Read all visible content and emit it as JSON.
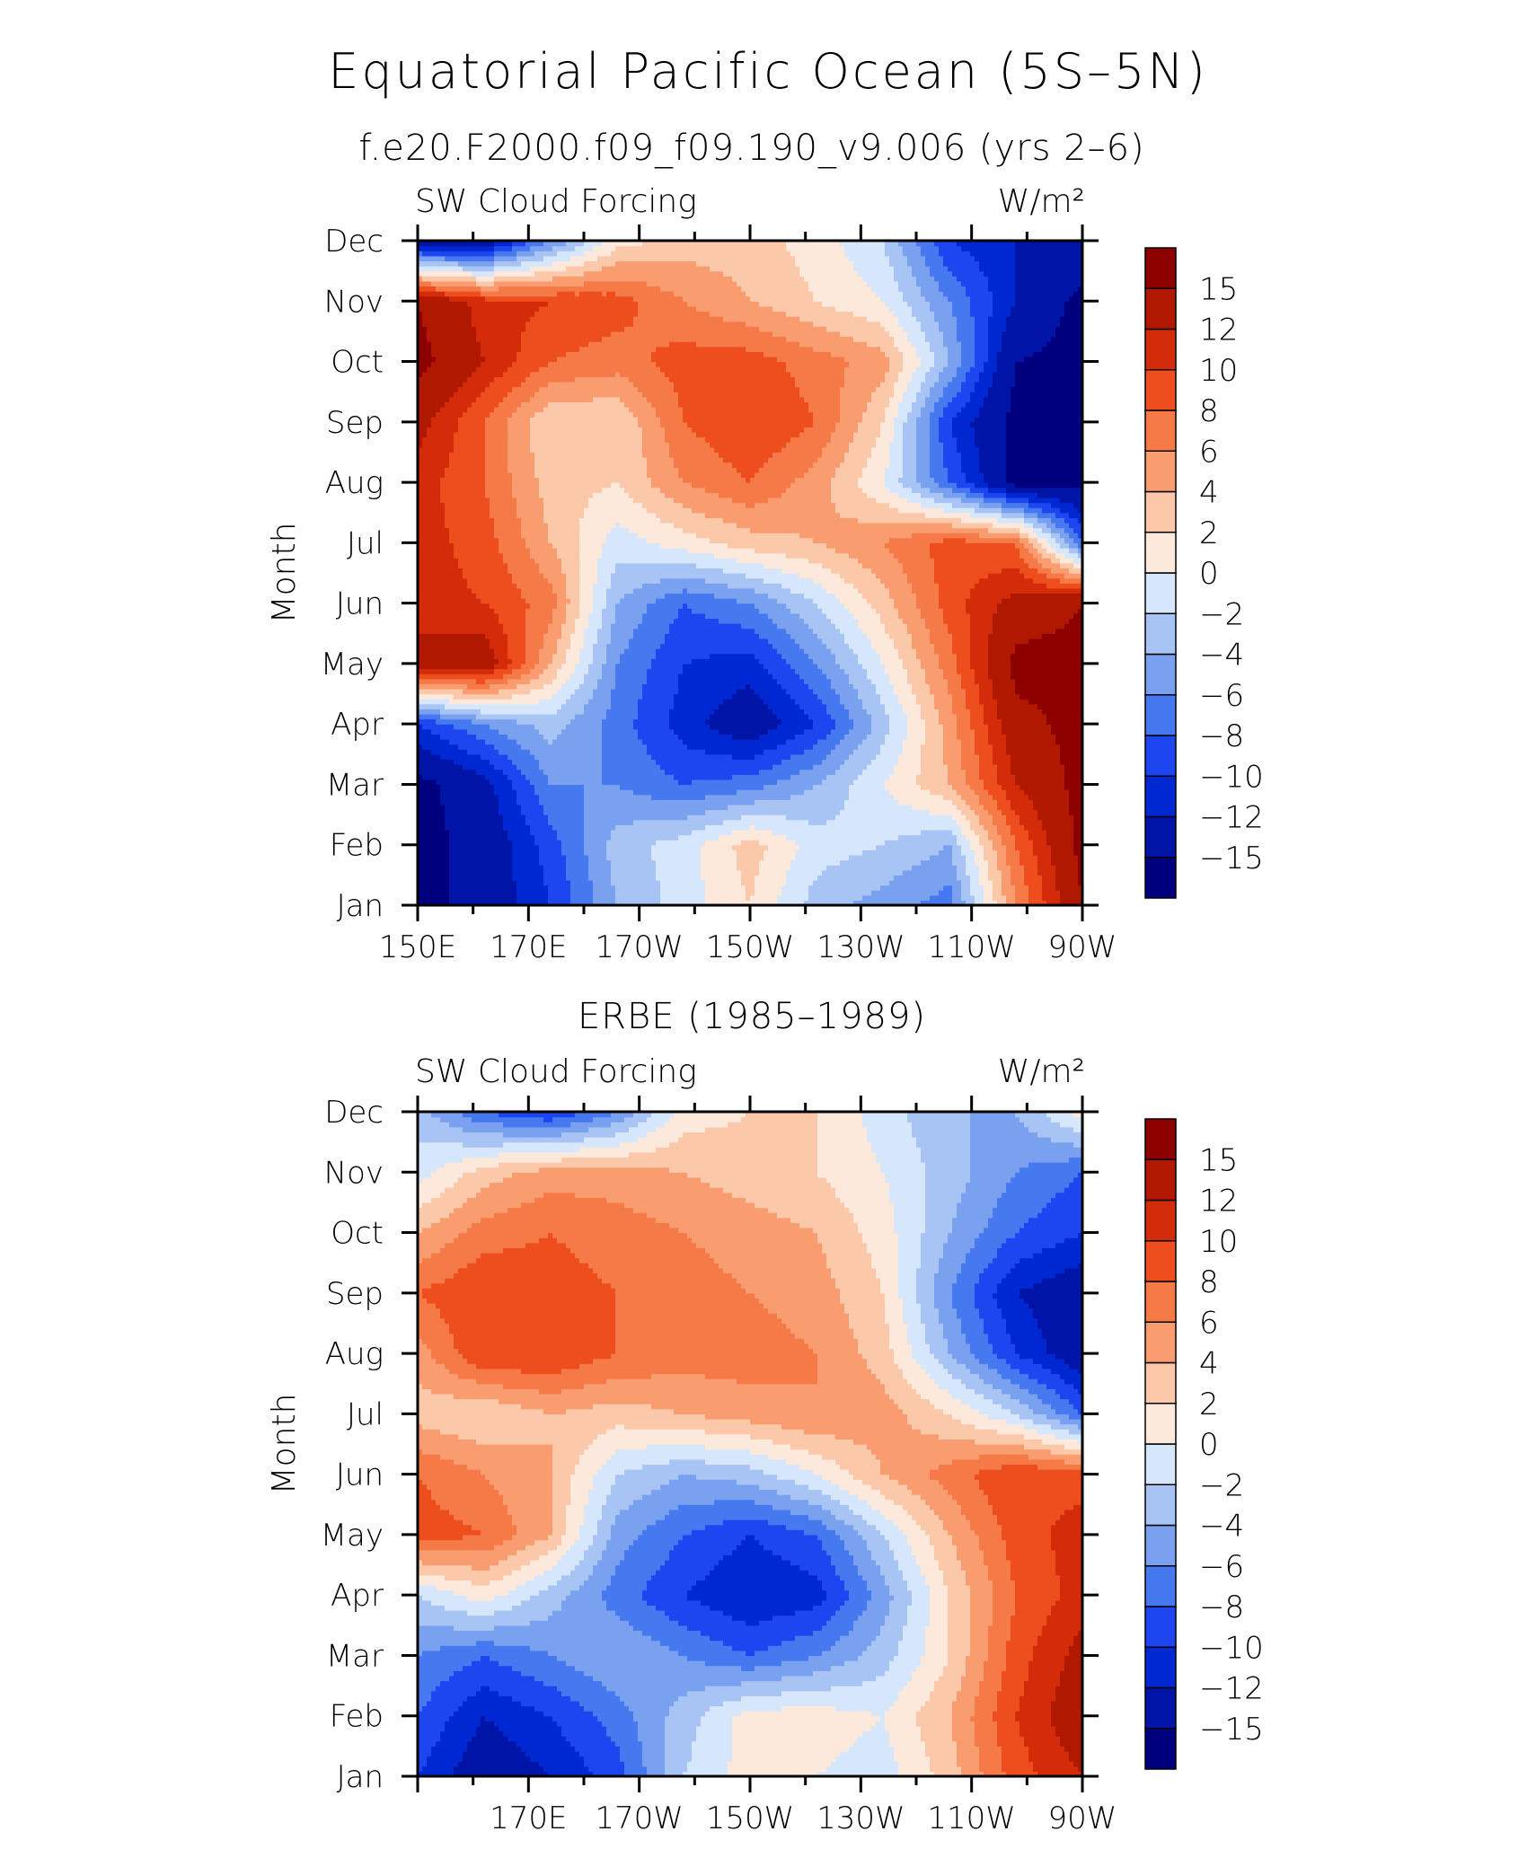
{
  "figure": {
    "title": "Equatorial Pacific Ocean (5S–5N)"
  },
  "chart_data": [
    {
      "type": "heatmap",
      "title": "f.e20.F2000.f09_f09.190_v9.006 (yrs 2–6)",
      "left_label": "SW Cloud Forcing",
      "units": "W/m²",
      "ylabel": "Month",
      "y_ticks": [
        "Jan",
        "Feb",
        "Mar",
        "Apr",
        "May",
        "Jun",
        "Jul",
        "Aug",
        "Sep",
        "Oct",
        "Nov",
        "Dec"
      ],
      "x_ticks": [
        "150E",
        "170E",
        "170W",
        "150W",
        "130W",
        "110W",
        "90W"
      ],
      "x_range_deg_east": [
        150,
        270
      ],
      "colorbar_labels": [
        "15",
        "12",
        "10",
        "8",
        "6",
        "4",
        "2",
        "0",
        "−2",
        "−4",
        "−6",
        "−8",
        "−10",
        "−12",
        "−15"
      ],
      "color_levels": [
        -15,
        -12,
        -10,
        -8,
        -6,
        -4,
        -2,
        0,
        2,
        4,
        6,
        8,
        10,
        12,
        15
      ],
      "colors": [
        "#00007f",
        "#0014a8",
        "#0028d2",
        "#1e46f0",
        "#4678f0",
        "#7aa0f0",
        "#a8c4f5",
        "#d6e6fb",
        "#fde8dc",
        "#fcc8aa",
        "#f99c70",
        "#f57a48",
        "#ee4e1e",
        "#d42c0a",
        "#b01800",
        "#8c0000"
      ],
      "x": [
        150,
        162,
        174,
        186,
        198,
        210,
        222,
        234,
        246,
        258,
        270
      ],
      "grid": [
        [
          -16,
          -14,
          -10,
          -4,
          -1,
          2,
          -3,
          -5,
          -7,
          6,
          15
        ],
        [
          -16,
          -14,
          -9,
          -3,
          -1,
          3,
          -1,
          -2,
          -4,
          8,
          16
        ],
        [
          -16,
          -13,
          -6,
          -6,
          -8,
          -7,
          -4,
          0,
          4,
          12,
          16
        ],
        [
          -10,
          -6,
          -3,
          -7,
          -11,
          -14,
          -10,
          -3,
          5,
          14,
          16
        ],
        [
          13,
          14,
          4,
          -6,
          -10,
          -11,
          -6,
          0,
          7,
          16,
          16
        ],
        [
          11,
          10,
          7,
          -4,
          -8,
          -6,
          -2,
          3,
          9,
          13,
          15
        ],
        [
          11,
          9,
          4,
          -1,
          1,
          3,
          4,
          6,
          9,
          8,
          -8
        ],
        [
          11,
          8,
          3,
          2,
          6,
          8,
          5,
          0,
          -8,
          -16,
          -16
        ],
        [
          13,
          8,
          2,
          2,
          8,
          10,
          8,
          2,
          -10,
          -16,
          -16
        ],
        [
          16,
          12,
          8,
          7,
          9,
          9,
          7,
          5,
          -4,
          -15,
          -16
        ],
        [
          15,
          11,
          10,
          9,
          6,
          4,
          2,
          0,
          -6,
          -12,
          -16
        ],
        [
          -14,
          -14,
          -6,
          1,
          3,
          3,
          1,
          -2,
          -10,
          -12,
          -12
        ]
      ]
    },
    {
      "type": "heatmap",
      "title": "ERBE (1985–1989)",
      "left_label": "SW Cloud Forcing",
      "units": "W/m²",
      "ylabel": "Month",
      "y_ticks": [
        "Jan",
        "Feb",
        "Mar",
        "Apr",
        "May",
        "Jun",
        "Jul",
        "Aug",
        "Sep",
        "Oct",
        "Nov",
        "Dec"
      ],
      "x_ticks": [
        "170E",
        "170W",
        "150W",
        "130W",
        "110W",
        "90W"
      ],
      "x_range_deg_east": [
        150,
        270
      ],
      "colorbar_labels": [
        "15",
        "12",
        "10",
        "8",
        "6",
        "4",
        "2",
        "0",
        "−2",
        "−4",
        "−6",
        "−8",
        "−10",
        "−12",
        "−15"
      ],
      "color_levels": [
        -15,
        -12,
        -10,
        -8,
        -6,
        -4,
        -2,
        0,
        2,
        4,
        6,
        8,
        10,
        12,
        15
      ],
      "colors": [
        "#00007f",
        "#0014a8",
        "#0028d2",
        "#1e46f0",
        "#4678f0",
        "#7aa0f0",
        "#a8c4f5",
        "#d6e6fb",
        "#fde8dc",
        "#fcc8aa",
        "#f99c70",
        "#f57a48",
        "#ee4e1e",
        "#d42c0a",
        "#b01800",
        "#8c0000"
      ],
      "x": [
        150,
        162,
        174,
        186,
        198,
        210,
        222,
        234,
        246,
        258,
        270
      ],
      "grid": [
        [
          -10,
          -14,
          -12,
          -9,
          -2,
          1,
          0,
          -1,
          3,
          9,
          12
        ],
        [
          -8,
          -12,
          -10,
          -7,
          -3,
          1,
          1,
          0,
          4,
          10,
          14
        ],
        [
          -6,
          -8,
          -6,
          -4,
          -6,
          -8,
          -6,
          -3,
          2,
          9,
          13
        ],
        [
          -2,
          1,
          -3,
          -7,
          -10,
          -12,
          -11,
          -5,
          2,
          8,
          11
        ],
        [
          9,
          8,
          4,
          -5,
          -8,
          -10,
          -8,
          -2,
          4,
          9,
          11
        ],
        [
          8,
          6,
          4,
          -2,
          -4,
          -3,
          0,
          4,
          7,
          10,
          9
        ],
        [
          3,
          2,
          4,
          3,
          4,
          5,
          6,
          5,
          2,
          -2,
          -8
        ],
        [
          5,
          10,
          10,
          8,
          7,
          7,
          6,
          3,
          -4,
          -10,
          -14
        ],
        [
          8,
          10,
          9,
          8,
          7,
          6,
          5,
          2,
          -6,
          -12,
          -14
        ],
        [
          4,
          7,
          8,
          7,
          6,
          5,
          4,
          1,
          -4,
          -8,
          -10
        ],
        [
          -1,
          3,
          5,
          5,
          4,
          3,
          2,
          0,
          -3,
          -6,
          -8
        ],
        [
          -3,
          -8,
          -10,
          -6,
          1,
          2,
          2,
          -1,
          -4,
          -4,
          1
        ]
      ]
    }
  ]
}
